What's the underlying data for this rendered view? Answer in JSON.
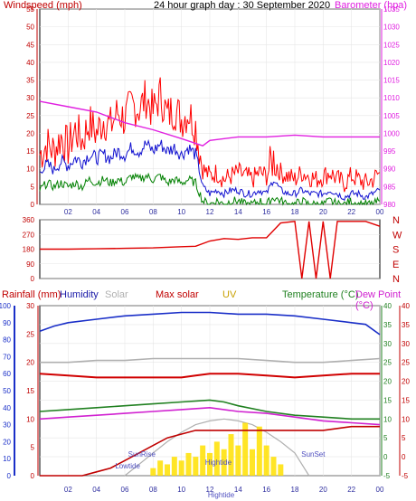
{
  "header": {
    "left_label": "Windspeed (mph)",
    "center_label": "24 hour graph day : 30 September 2020",
    "right_label": "Barometer (hpa)"
  },
  "colors": {
    "wind_avg": "#1010d0",
    "wind_gust": "#ff0000",
    "wind_low": "#008000",
    "barometer": "#e020e0",
    "direction": "#e00000",
    "rain": "#c00000",
    "humidity": "#1a2fc8",
    "solar": "#b0b0b0",
    "max_solar": "#d00000",
    "uv": "#ffe000",
    "temperature": "#208020",
    "dewpoint": "#d020d0",
    "axis": "#000000",
    "tick": "#888888"
  },
  "chart_data": [
    {
      "type": "line",
      "title": "24 hour graph day : 30 September 2020",
      "ylabel": "Windspeed (mph)",
      "y2label": "Barometer (hpa)",
      "x_ticks": [
        "02",
        "04",
        "06",
        "08",
        "10",
        "12",
        "14",
        "16",
        "18",
        "20",
        "22",
        "00"
      ],
      "xlim": [
        0,
        24
      ],
      "ylim": [
        0,
        55
      ],
      "y_ticks": [
        0,
        5,
        10,
        15,
        20,
        25,
        30,
        35,
        40,
        45,
        50,
        55
      ],
      "y2lim": [
        980,
        1035
      ],
      "y2_ticks": [
        980,
        985,
        990,
        995,
        1000,
        1005,
        1010,
        1015,
        1020,
        1025,
        1030,
        1035
      ],
      "grid": true,
      "series": [
        {
          "key": "gust",
          "x": [
            0,
            0.5,
            1,
            1.5,
            2,
            2.5,
            3,
            3.5,
            4,
            4.5,
            5,
            5.5,
            6,
            6.5,
            7,
            7.5,
            8,
            8.5,
            9,
            9.5,
            10,
            10.5,
            11,
            11.5,
            12,
            12.5,
            13,
            13.5,
            14,
            14.5,
            15,
            15.5,
            16,
            16.5,
            17,
            17.5,
            18,
            18.5,
            19,
            19.5,
            20,
            20.5,
            21,
            21.5,
            22,
            22.5,
            23,
            23.5,
            24
          ],
          "values": [
            14,
            17,
            15,
            19,
            16,
            21,
            18,
            23,
            20,
            24,
            22,
            26,
            24,
            28,
            27,
            30,
            26,
            31,
            25,
            27,
            24,
            26,
            22,
            10,
            8,
            9,
            7,
            8,
            9,
            8,
            7,
            9,
            8,
            13,
            9,
            8,
            7,
            9,
            8,
            7,
            8,
            9,
            7,
            6,
            8,
            7,
            6,
            7,
            9
          ]
        },
        {
          "key": "average",
          "x": [
            0,
            0.5,
            1,
            1.5,
            2,
            2.5,
            3,
            3.5,
            4,
            4.5,
            5,
            5.5,
            6,
            6.5,
            7,
            7.5,
            8,
            8.5,
            9,
            9.5,
            10,
            10.5,
            11,
            11.5,
            12,
            12.5,
            13,
            13.5,
            14,
            14.5,
            15,
            15.5,
            16,
            16.5,
            17,
            17.5,
            18,
            18.5,
            19,
            19.5,
            20,
            20.5,
            21,
            21.5,
            22,
            22.5,
            23,
            23.5,
            24
          ],
          "values": [
            9,
            11,
            10,
            12,
            11,
            13,
            12,
            14,
            13,
            14,
            13,
            15,
            14,
            16,
            15,
            17,
            15,
            17,
            15,
            16,
            14,
            16,
            14,
            5,
            3,
            4,
            3,
            4,
            4,
            3,
            3,
            4,
            3,
            7,
            4,
            3,
            3,
            4,
            3,
            3,
            3,
            4,
            3,
            2,
            3,
            3,
            2,
            3,
            4
          ]
        },
        {
          "key": "low",
          "x": [
            0,
            0.5,
            1,
            1.5,
            2,
            2.5,
            3,
            3.5,
            4,
            4.5,
            5,
            5.5,
            6,
            6.5,
            7,
            7.5,
            8,
            8.5,
            9,
            9.5,
            10,
            10.5,
            11,
            11.5,
            12,
            12.5,
            13,
            13.5,
            14,
            14.5,
            15,
            15.5,
            16,
            16.5,
            17,
            17.5,
            18,
            18.5,
            19,
            19.5,
            20,
            20.5,
            21,
            21.5,
            22,
            22.5,
            23,
            23.5,
            24
          ],
          "values": [
            4,
            6,
            5,
            6,
            5,
            6,
            5,
            7,
            6,
            7,
            6,
            7,
            6,
            8,
            7,
            8,
            7,
            8,
            6,
            7,
            6,
            7,
            6,
            1,
            0,
            1,
            0,
            1,
            1,
            0,
            0,
            1,
            0,
            2,
            1,
            0,
            0,
            1,
            0,
            0,
            0,
            1,
            0,
            0,
            1,
            0,
            0,
            0,
            1
          ]
        },
        {
          "key": "barometer",
          "axis": "y2",
          "x": [
            0,
            2,
            4,
            6,
            8,
            10,
            11.5,
            12,
            14,
            16,
            18,
            20,
            22,
            24
          ],
          "values": [
            1009,
            1007.5,
            1006,
            1003,
            1001,
            998.5,
            996.5,
            998,
            999,
            999,
            999.5,
            999,
            999,
            999
          ]
        }
      ]
    },
    {
      "type": "line",
      "title": "",
      "y_ticks": [
        0,
        90,
        180,
        270,
        360
      ],
      "ylim": [
        0,
        360
      ],
      "right_labels": [
        "N",
        "W",
        "S",
        "E",
        "N"
      ],
      "x_ticks": [
        "02",
        "04",
        "06",
        "08",
        "10",
        "12",
        "14",
        "16",
        "18",
        "20",
        "22",
        "00"
      ],
      "series": [
        {
          "key": "direction",
          "x": [
            0,
            2,
            4,
            6,
            8,
            10,
            11,
            12,
            13,
            14,
            15,
            16,
            17,
            18,
            18.5,
            19,
            19.5,
            20,
            20.5,
            21,
            22,
            23,
            24
          ],
          "values": [
            180,
            180,
            182,
            185,
            188,
            195,
            198,
            230,
            245,
            240,
            250,
            250,
            340,
            350,
            0,
            350,
            0,
            350,
            0,
            350,
            350,
            350,
            320
          ]
        }
      ]
    },
    {
      "type": "line",
      "title": "",
      "legend": [
        "Rainfall (mm)",
        "Humidity",
        "Solar",
        "Max solar",
        "UV",
        "Temperature (°C)",
        "Dew Point (°C)"
      ],
      "y_ticks_rain": [
        0,
        10,
        20,
        30,
        40,
        50,
        60,
        70,
        80,
        90,
        100
      ],
      "y_ticks_humidity": [
        0,
        5,
        10,
        15,
        20,
        25,
        30
      ],
      "y_ticks_temp": [
        -5,
        0,
        5,
        10,
        15,
        20,
        25,
        30,
        35,
        40
      ],
      "temp_lim": [
        -5,
        40
      ],
      "x_ticks": [
        "02",
        "04",
        "06",
        "08",
        "10",
        "12",
        "14",
        "16",
        "18",
        "20",
        "22",
        "00"
      ],
      "annotations": [
        {
          "text": "SunRise",
          "x": 7.2
        },
        {
          "text": "Lowtide",
          "x": 6.2
        },
        {
          "text": "Hightide",
          "x": 12.6
        },
        {
          "text": "Hightide",
          "x": 12.8
        },
        {
          "text": "SunSet",
          "x": 19.3
        }
      ],
      "series": [
        {
          "key": "humidity",
          "unit": "%",
          "x": [
            0,
            1,
            2,
            4,
            6,
            8,
            10,
            12,
            14,
            16,
            18,
            20,
            22,
            23,
            24
          ],
          "values": [
            85,
            88,
            90,
            92,
            94,
            95,
            96,
            96,
            95,
            95,
            94,
            92,
            90,
            89,
            83
          ]
        },
        {
          "key": "temperature",
          "unit": "C",
          "x": [
            0,
            2,
            4,
            6,
            8,
            10,
            12,
            13,
            14,
            16,
            18,
            20,
            22,
            24
          ],
          "values": [
            12,
            12.5,
            13,
            13.5,
            14,
            14.5,
            15,
            14.5,
            13.5,
            12,
            11,
            10.5,
            10,
            10
          ]
        },
        {
          "key": "dewpoint",
          "unit": "C",
          "x": [
            0,
            2,
            4,
            6,
            8,
            10,
            12,
            14,
            16,
            18,
            20,
            22,
            24
          ],
          "values": [
            10,
            10.5,
            11,
            11.5,
            12,
            12.5,
            13,
            12,
            11.5,
            10.5,
            9.5,
            9,
            8.5
          ]
        },
        {
          "key": "max_solar_line",
          "unit": "C",
          "x": [
            0,
            2,
            4,
            6,
            8,
            10,
            11,
            12,
            14,
            16,
            18,
            20,
            22,
            24
          ],
          "values": [
            22,
            21.5,
            21,
            21,
            21,
            21,
            21.5,
            22,
            22,
            21.5,
            21,
            21.5,
            22,
            22
          ]
        },
        {
          "key": "grey_line",
          "unit": "C",
          "x": [
            0,
            2,
            4,
            6,
            8,
            10,
            12,
            14,
            16,
            18,
            20,
            22,
            24
          ],
          "values": [
            25,
            25,
            25.5,
            25.5,
            26,
            26,
            26,
            26,
            25.5,
            25,
            25,
            25.5,
            26
          ]
        },
        {
          "key": "rainfall",
          "unit": "C",
          "x": [
            0,
            1,
            2,
            3,
            4,
            5,
            6,
            7,
            8,
            9,
            10,
            11,
            12,
            13,
            14,
            16,
            18,
            20,
            22,
            24
          ],
          "values": [
            -5,
            -5,
            -5,
            -5,
            -4,
            -3,
            -1,
            1,
            3,
            5,
            6,
            7,
            7,
            7,
            7,
            7,
            7,
            7,
            8,
            8
          ]
        },
        {
          "key": "max_solar_curve",
          "unit": "C",
          "x": [
            6,
            7,
            8,
            9,
            10,
            11,
            12,
            13,
            14,
            15,
            16,
            17,
            18,
            19
          ],
          "values": [
            -5,
            -2,
            1,
            4,
            6.5,
            8.5,
            9.5,
            10,
            9.5,
            8.5,
            6.5,
            4,
            1,
            -5
          ]
        }
      ],
      "solar_bars": {
        "x": [
          8,
          8.5,
          9,
          9.5,
          10,
          10.5,
          11,
          11.5,
          12,
          12.5,
          13,
          13.5,
          14,
          14.5,
          15,
          15.5,
          16,
          16.5,
          17
        ],
        "values": [
          -3,
          -1,
          -2,
          0,
          -1,
          1,
          0,
          3,
          1,
          4,
          2,
          6,
          3,
          9,
          2,
          8,
          3,
          0,
          -2
        ]
      }
    }
  ]
}
